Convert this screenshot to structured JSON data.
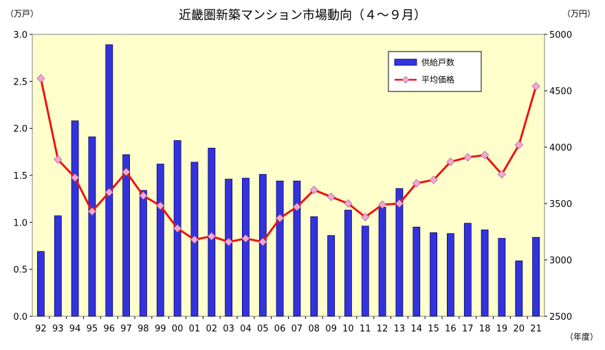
{
  "chart_data": {
    "type": "bar+line",
    "title": "近畿圏新築マンション市場動向（４～９月）",
    "y_left_unit": "（万戸）",
    "y_right_unit": "（万円）",
    "x_unit": "（年度）",
    "categories": [
      "92",
      "93",
      "94",
      "95",
      "96",
      "97",
      "98",
      "99",
      "00",
      "01",
      "02",
      "03",
      "04",
      "05",
      "06",
      "07",
      "08",
      "09",
      "10",
      "11",
      "12",
      "13",
      "14",
      "15",
      "16",
      "17",
      "18",
      "19",
      "20",
      "21"
    ],
    "y_left_range": [
      0,
      3.0
    ],
    "y_left_ticks": [
      "0.0",
      "0.5",
      "1.0",
      "1.5",
      "2.0",
      "2.5",
      "3.0"
    ],
    "y_right_range": [
      2500,
      5000
    ],
    "y_right_ticks": [
      "2500",
      "3000",
      "3500",
      "4000",
      "4500",
      "5000"
    ],
    "grid": false,
    "legend_position": "top-right",
    "series": [
      {
        "name": "供給戸数",
        "type": "bar",
        "axis": "left",
        "color": "#3333dd",
        "values": [
          0.69,
          1.07,
          2.08,
          1.91,
          2.89,
          1.72,
          1.34,
          1.62,
          1.87,
          1.64,
          1.79,
          1.46,
          1.47,
          1.51,
          1.44,
          1.44,
          1.06,
          0.86,
          1.13,
          0.96,
          1.16,
          1.36,
          0.95,
          0.89,
          0.88,
          0.99,
          0.92,
          0.83,
          0.59,
          0.84
        ]
      },
      {
        "name": "平均価格",
        "type": "line",
        "axis": "right",
        "color": "#ee1111",
        "marker_color": "#f2a6d8",
        "values": [
          4610,
          3890,
          3730,
          3430,
          3600,
          3780,
          3570,
          3480,
          3280,
          3180,
          3210,
          3160,
          3190,
          3160,
          3370,
          3470,
          3620,
          3560,
          3500,
          3380,
          3490,
          3500,
          3680,
          3710,
          3870,
          3910,
          3930,
          3760,
          4020,
          4540
        ]
      }
    ]
  }
}
